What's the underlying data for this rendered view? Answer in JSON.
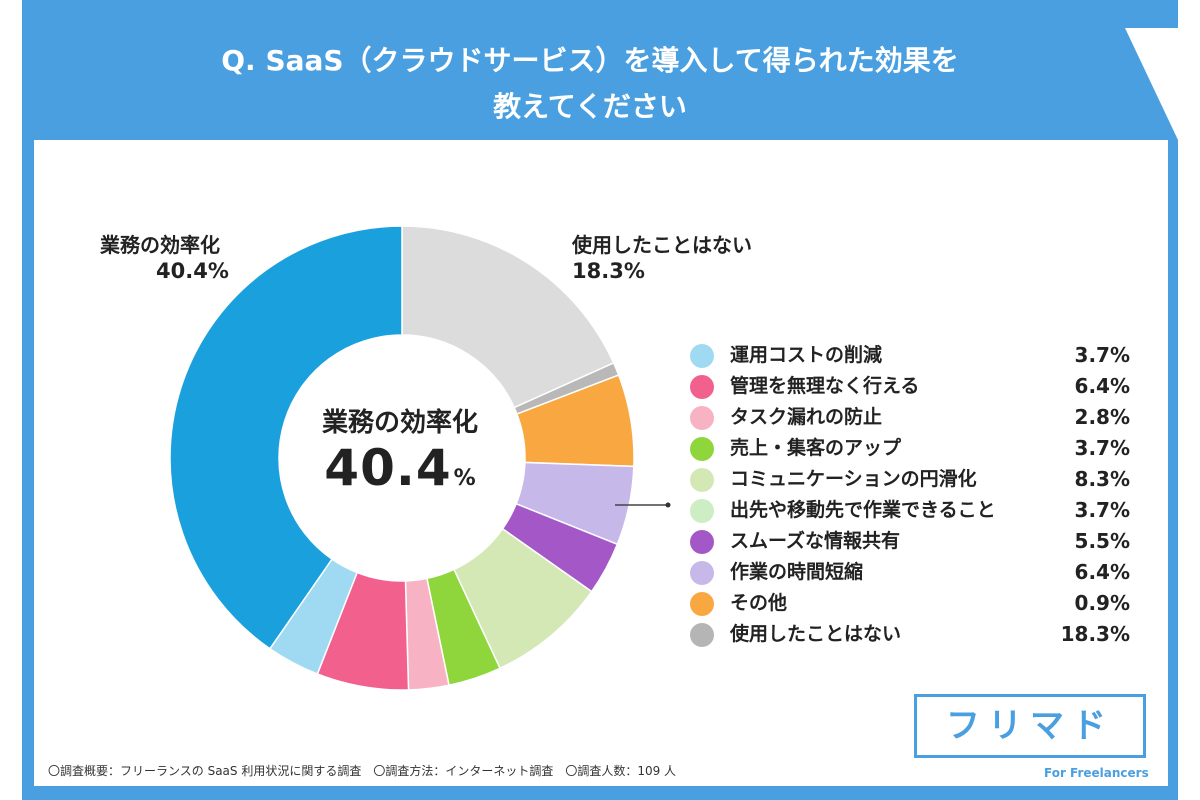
{
  "title": {
    "line1": "Q. SaaS（クラウドサービス）を導入して得られた効果を",
    "line2": "教えてください"
  },
  "center": {
    "label": "業務の効率化",
    "value": "40.4",
    "unit": "%"
  },
  "callouts": {
    "main": {
      "label": "業務の効率化",
      "value": "40.4%"
    },
    "unused": {
      "label": "使用したことはない",
      "value": "18.3%"
    }
  },
  "footnote": "〇調査概要：フリーランスの SaaS 利用状況に関する調査　〇調査方法：インターネット調査　〇調査人数：109 人",
  "logo": {
    "text": "フリマド",
    "sub": "For Freelancers"
  },
  "chart_data": {
    "type": "pie",
    "title": "Q. SaaS（クラウドサービス）を導入して得られた効果を教えてください",
    "unit": "%",
    "legend_position": "right",
    "slices": [
      {
        "label": "業務の効率化",
        "value": 40.4,
        "color": "#1aa0dc"
      },
      {
        "label": "運用コストの削減",
        "value": 3.7,
        "color": "#9fdaf2"
      },
      {
        "label": "管理を無理なく行える",
        "value": 6.4,
        "color": "#f2608e"
      },
      {
        "label": "タスク漏れの防止",
        "value": 2.8,
        "color": "#f7b3c4"
      },
      {
        "label": "売上・集客のアップ",
        "value": 3.7,
        "color": "#8fd63c"
      },
      {
        "label": "コミュニケーションの円滑化",
        "value": 8.3,
        "color": "#d3e8b5"
      },
      {
        "label": "出先や移動先で作業できること",
        "value": 3.7,
        "color": "#cdedc4"
      },
      {
        "label": "スムーズな情報共有",
        "value": 5.5,
        "color": "#a458c8"
      },
      {
        "label": "作業の時間短縮",
        "value": 6.4,
        "color": "#c7b8ea"
      },
      {
        "label": "その他",
        "value": 0.9,
        "color": "#f9a741"
      },
      {
        "label": "使用したことはない",
        "value": 18.3,
        "color": "#dcdcdc"
      }
    ],
    "pie_order": [
      {
        "label": "使用したことはない",
        "value": 18.3,
        "color": "#dcdcdc"
      },
      {
        "label": "その他",
        "value": 0.9,
        "color": "#b8b8b8"
      },
      {
        "label": "作業の時間短縮",
        "value": 6.4,
        "color": "#f9a741"
      },
      {
        "label": "スムーズな情報共有",
        "value": 5.5,
        "color": "#c7b8ea"
      },
      {
        "label": "出先や移動先で作業できること",
        "value": 3.7,
        "color": "#a458c8"
      },
      {
        "label": "コミュニケーションの円滑化",
        "value": 8.3,
        "color": "#d3e8b5"
      },
      {
        "label": "売上・集客のアップ",
        "value": 3.7,
        "color": "#8fd63c"
      },
      {
        "label": "タスク漏れの防止",
        "value": 2.8,
        "color": "#f7b3c4"
      },
      {
        "label": "管理を無理なく行える",
        "value": 6.4,
        "color": "#f2608e"
      },
      {
        "label": "運用コストの削減",
        "value": 3.7,
        "color": "#9fdaf2"
      },
      {
        "label": "業務の効率化",
        "value": 40.4,
        "color": "#1aa0dc"
      }
    ],
    "legend": [
      {
        "label": "運用コストの削減",
        "value": "3.7%",
        "color": "#9fdaf2"
      },
      {
        "label": "管理を無理なく行える",
        "value": "6.4%",
        "color": "#f2608e"
      },
      {
        "label": "タスク漏れの防止",
        "value": "2.8%",
        "color": "#f7b3c4"
      },
      {
        "label": "売上・集客のアップ",
        "value": "3.7%",
        "color": "#8fd63c"
      },
      {
        "label": "コミュニケーションの円滑化",
        "value": "8.3%",
        "color": "#d3e8b5"
      },
      {
        "label": "出先や移動先で作業できること",
        "value": "3.7%",
        "color": "#cdedc4"
      },
      {
        "label": "スムーズな情報共有",
        "value": "5.5%",
        "color": "#a458c8"
      },
      {
        "label": "作業の時間短縮",
        "value": "6.4%",
        "color": "#c7b8ea"
      },
      {
        "label": "その他",
        "value": "0.9%",
        "color": "#f9a741"
      },
      {
        "label": "使用したことはない",
        "value": "18.3%",
        "color": "#b5b5b5"
      }
    ]
  }
}
